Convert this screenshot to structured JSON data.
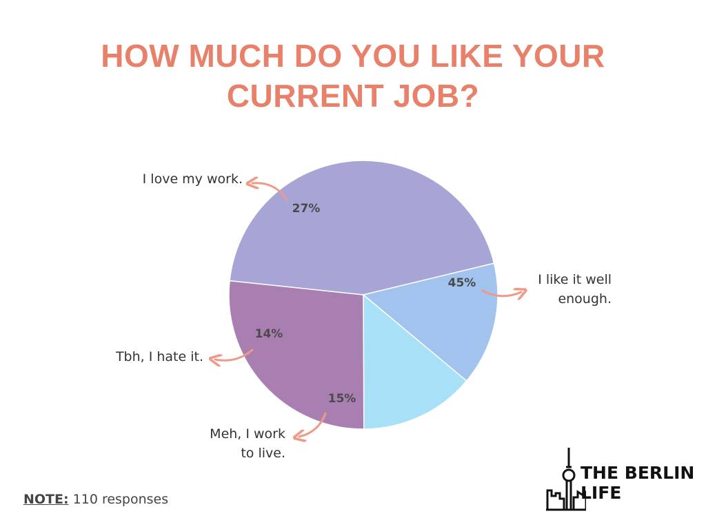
{
  "colors": {
    "title": "#e8806a",
    "arrow": "#ef9a87",
    "label": "#333333",
    "percent": "#4a4a4a"
  },
  "title": {
    "line1": "HOW MUCH DO YOU LIKE YOUR",
    "line2": "CURRENT JOB?"
  },
  "note": {
    "label": "NOTE:",
    "text": "110 responses"
  },
  "logo": {
    "line1": "THE BERLIN",
    "line2": "LIFE",
    "icon": "tv-tower-skyline-icon"
  },
  "chart_data": {
    "type": "pie",
    "title": "HOW MUCH DO YOU LIKE YOUR CURRENT JOB?",
    "slices": [
      {
        "label": "I like it well enough.",
        "value": 45,
        "display": "45%",
        "color": "#a7a4d6"
      },
      {
        "label": "Meh, I work to live.",
        "value": 15,
        "display": "15%",
        "color": "#a2c3ee"
      },
      {
        "label": "Tbh, I hate it.",
        "value": 14,
        "display": "14%",
        "color": "#a8e0f8"
      },
      {
        "label": "I love my work.",
        "value": 27,
        "display": "27%",
        "color": "#a97fb1"
      }
    ]
  }
}
